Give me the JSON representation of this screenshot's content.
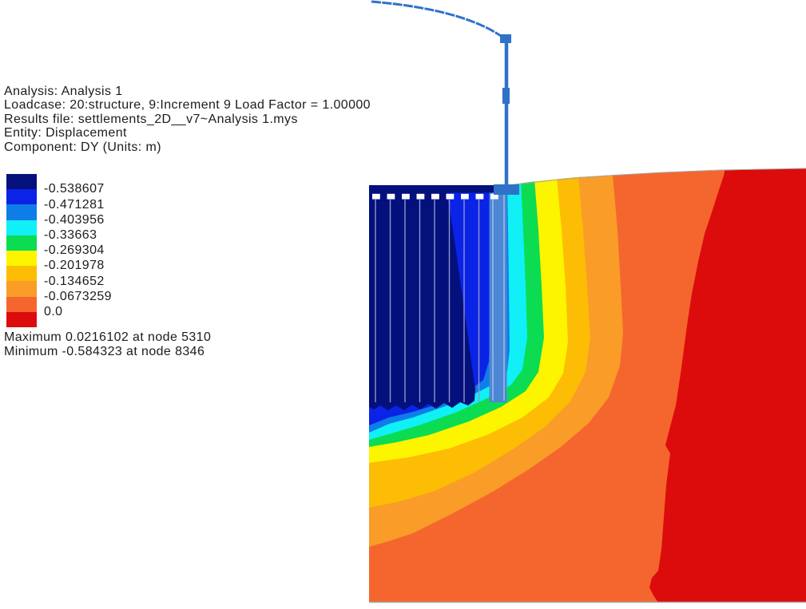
{
  "info": {
    "lines": [
      "Analysis: Analysis 1",
      "Loadcase: 20:structure, 9:Increment 9 Load Factor = 1.00000",
      "Results file: settlements_2D__v7~Analysis 1.mys",
      "Entity: Displacement",
      "Component: DY (Units: m)"
    ]
  },
  "legend": {
    "values": [
      "-0.538607",
      "-0.471281",
      "-0.403956",
      "-0.33663",
      "-0.269304",
      "-0.201978",
      "-0.134652",
      "-0.0673259",
      "0.0"
    ],
    "colors": [
      "#04107c",
      "#0a23e6",
      "#0f7de8",
      "#10f0f6",
      "#0cdc52",
      "#fdf400",
      "#fcbd04",
      "#fa9c28",
      "#f5662e",
      "#dc0c0c"
    ]
  },
  "stats": {
    "maximum": "Maximum 0.0216102 at node 5310",
    "minimum": "Minimum -0.584323 at node 8346"
  },
  "colors": {
    "structure": "#2f72c8",
    "pier": "#4b87d4",
    "pier_highlight": "#b9c7ea",
    "pile_line": "#8d95cc",
    "outline_gray": "#a6a6a6"
  },
  "chart_data": {
    "type": "heatmap",
    "subtype": "fem-displacement-contour-plot",
    "title": "",
    "entity": "Displacement",
    "component": "DY",
    "units": "m",
    "analysis": "Analysis 1",
    "loadcase": "20:structure, 9:Increment 9",
    "load_factor": 1.0,
    "results_file": "settlements_2D__v7~Analysis 1.mys",
    "contour_levels_m": [
      -0.538607,
      -0.471281,
      -0.403956,
      -0.33663,
      -0.269304,
      -0.201978,
      -0.134652,
      -0.0673259,
      0.0
    ],
    "band_colors": [
      "#04107c",
      "#0a23e6",
      "#0f7de8",
      "#10f0f6",
      "#0cdc52",
      "#fdf400",
      "#fcbd04",
      "#fa9c28",
      "#f5662e",
      "#dc0c0c"
    ],
    "maximum": {
      "value": 0.0216102,
      "node": 5310
    },
    "minimum": {
      "value": -0.584323,
      "node": 8346
    },
    "legend_position": "left",
    "notes": "Soil domain with pile group and raft at top-left; settlement bands wrap around pile group; near-zero (red) band at far right; blue column with curved arc beam above ground surface."
  }
}
